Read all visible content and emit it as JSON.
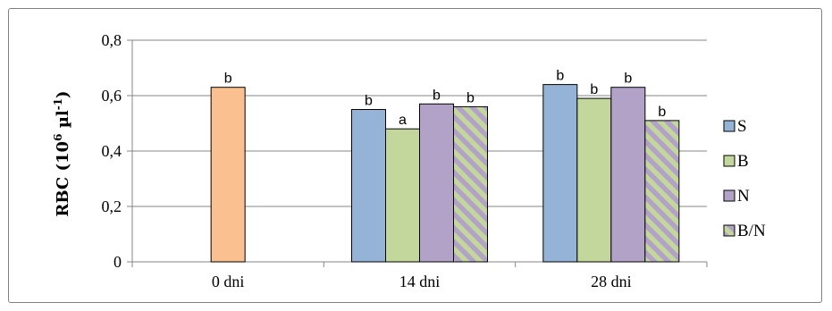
{
  "chart_data": {
    "type": "bar",
    "title": "",
    "xlabel": "",
    "ylabel": "RBC (10",
    "ylabel_sup1": "6",
    "ylabel_unit": " µl",
    "ylabel_sup2": "-1",
    "ylabel_end": ")",
    "ylim": [
      0,
      0.8
    ],
    "yticks": [
      {
        "value": 0,
        "label": "0"
      },
      {
        "value": 0.2,
        "label": "0,2"
      },
      {
        "value": 0.4,
        "label": "0,4"
      },
      {
        "value": 0.6,
        "label": "0,6"
      },
      {
        "value": 0.8,
        "label": "0,8"
      }
    ],
    "grid": true,
    "legend_position": "right",
    "categories": [
      "0 dni",
      "14 dni",
      "28 dni"
    ],
    "control": {
      "category": "0 dni",
      "value": 0.63,
      "label": "b",
      "color": "#fac090"
    },
    "series": [
      {
        "name": "S",
        "color": "#95b3d7",
        "pattern": "solid",
        "values": [
          null,
          0.55,
          0.64
        ],
        "labels": [
          "",
          "b",
          "b"
        ]
      },
      {
        "name": "B",
        "color": "#c3d69b",
        "pattern": "solid",
        "values": [
          null,
          0.48,
          0.59
        ],
        "labels": [
          "",
          "a",
          "b"
        ]
      },
      {
        "name": "N",
        "color": "#b3a2c7",
        "pattern": "solid",
        "values": [
          null,
          0.57,
          0.63
        ],
        "labels": [
          "",
          "b",
          "b"
        ]
      },
      {
        "name": "B/N",
        "color": "#c3d69b",
        "pattern": "diagonal-stripes",
        "stripe_color": "#b3a2c7",
        "values": [
          null,
          0.56,
          0.51
        ],
        "labels": [
          "",
          "b",
          "b"
        ]
      }
    ]
  }
}
